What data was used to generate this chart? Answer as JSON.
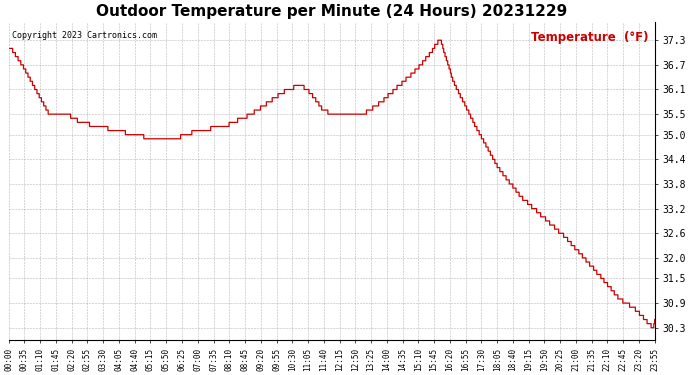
{
  "title": "Outdoor Temperature per Minute (24 Hours) 20231229",
  "copyright_text": "Copyright 2023 Cartronics.com",
  "legend_text": "Temperature  (°F)",
  "line_color": "#cc0000",
  "legend_color": "#cc0000",
  "copyright_color": "#000000",
  "background_color": "#ffffff",
  "grid_color": "#888888",
  "title_fontsize": 11,
  "tick_fontsize": 5.5,
  "ylabel_right_fontsize": 7,
  "ylim": [
    30.0,
    37.75
  ],
  "yticks": [
    30.3,
    30.9,
    31.5,
    32.0,
    32.6,
    33.2,
    33.8,
    34.4,
    35.0,
    35.5,
    36.1,
    36.7,
    37.3
  ],
  "x_tick_labels": [
    "00:00",
    "00:35",
    "01:10",
    "01:45",
    "02:20",
    "02:55",
    "03:30",
    "04:05",
    "04:40",
    "05:15",
    "05:50",
    "06:25",
    "07:00",
    "07:35",
    "08:10",
    "08:45",
    "09:20",
    "09:55",
    "10:30",
    "11:05",
    "11:40",
    "12:15",
    "12:50",
    "13:25",
    "14:00",
    "14:35",
    "15:10",
    "15:45",
    "16:20",
    "16:55",
    "17:30",
    "18:05",
    "18:40",
    "19:15",
    "19:50",
    "20:25",
    "21:00",
    "21:35",
    "22:10",
    "22:45",
    "23:20",
    "23:55"
  ],
  "segment_descriptions": [
    {
      "from_minute": 0,
      "to_minute": 5,
      "from_temp": 37.1,
      "to_temp": 37.1
    },
    {
      "from_minute": 5,
      "to_minute": 30,
      "from_temp": 37.1,
      "to_temp": 36.7
    },
    {
      "from_minute": 30,
      "to_minute": 60,
      "from_temp": 36.7,
      "to_temp": 36.1
    },
    {
      "from_minute": 60,
      "to_minute": 90,
      "from_temp": 36.1,
      "to_temp": 35.5
    },
    {
      "from_minute": 90,
      "to_minute": 130,
      "from_temp": 35.5,
      "to_temp": 35.5
    },
    {
      "from_minute": 130,
      "to_minute": 160,
      "from_temp": 35.5,
      "to_temp": 35.3
    },
    {
      "from_minute": 160,
      "to_minute": 200,
      "from_temp": 35.3,
      "to_temp": 35.2
    },
    {
      "from_minute": 200,
      "to_minute": 240,
      "from_temp": 35.2,
      "to_temp": 35.1
    },
    {
      "from_minute": 240,
      "to_minute": 280,
      "from_temp": 35.1,
      "to_temp": 35.0
    },
    {
      "from_minute": 280,
      "to_minute": 320,
      "from_temp": 35.0,
      "to_temp": 34.9
    },
    {
      "from_minute": 320,
      "to_minute": 370,
      "from_temp": 34.9,
      "to_temp": 34.9
    },
    {
      "from_minute": 370,
      "to_minute": 420,
      "from_temp": 34.9,
      "to_temp": 35.1
    },
    {
      "from_minute": 420,
      "to_minute": 480,
      "from_temp": 35.1,
      "to_temp": 35.2
    },
    {
      "from_minute": 480,
      "to_minute": 540,
      "from_temp": 35.2,
      "to_temp": 35.5
    },
    {
      "from_minute": 540,
      "to_minute": 580,
      "from_temp": 35.5,
      "to_temp": 35.8
    },
    {
      "from_minute": 580,
      "to_minute": 620,
      "from_temp": 35.8,
      "to_temp": 36.1
    },
    {
      "from_minute": 620,
      "to_minute": 650,
      "from_temp": 36.1,
      "to_temp": 36.2
    },
    {
      "from_minute": 650,
      "to_minute": 665,
      "from_temp": 36.2,
      "to_temp": 36.1
    },
    {
      "from_minute": 665,
      "to_minute": 680,
      "from_temp": 36.1,
      "to_temp": 35.9
    },
    {
      "from_minute": 680,
      "to_minute": 700,
      "from_temp": 35.9,
      "to_temp": 35.6
    },
    {
      "from_minute": 700,
      "to_minute": 720,
      "from_temp": 35.6,
      "to_temp": 35.5
    },
    {
      "from_minute": 720,
      "to_minute": 760,
      "from_temp": 35.5,
      "to_temp": 35.5
    },
    {
      "from_minute": 760,
      "to_minute": 790,
      "from_temp": 35.5,
      "to_temp": 35.5
    },
    {
      "from_minute": 790,
      "to_minute": 830,
      "from_temp": 35.5,
      "to_temp": 35.8
    },
    {
      "from_minute": 830,
      "to_minute": 870,
      "from_temp": 35.8,
      "to_temp": 36.2
    },
    {
      "from_minute": 870,
      "to_minute": 910,
      "from_temp": 36.2,
      "to_temp": 36.6
    },
    {
      "from_minute": 910,
      "to_minute": 940,
      "from_temp": 36.6,
      "to_temp": 37.0
    },
    {
      "from_minute": 940,
      "to_minute": 958,
      "from_temp": 37.0,
      "to_temp": 37.3
    },
    {
      "from_minute": 958,
      "to_minute": 962,
      "from_temp": 37.3,
      "to_temp": 37.3
    },
    {
      "from_minute": 962,
      "to_minute": 990,
      "from_temp": 37.3,
      "to_temp": 36.3
    },
    {
      "from_minute": 990,
      "to_minute": 1040,
      "from_temp": 36.3,
      "to_temp": 35.2
    },
    {
      "from_minute": 1040,
      "to_minute": 1090,
      "from_temp": 35.2,
      "to_temp": 34.2
    },
    {
      "from_minute": 1090,
      "to_minute": 1140,
      "from_temp": 34.2,
      "to_temp": 33.5
    },
    {
      "from_minute": 1140,
      "to_minute": 1190,
      "from_temp": 33.5,
      "to_temp": 33.0
    },
    {
      "from_minute": 1190,
      "to_minute": 1240,
      "from_temp": 33.0,
      "to_temp": 32.5
    },
    {
      "from_minute": 1240,
      "to_minute": 1290,
      "from_temp": 32.5,
      "to_temp": 31.9
    },
    {
      "from_minute": 1290,
      "to_minute": 1330,
      "from_temp": 31.9,
      "to_temp": 31.4
    },
    {
      "from_minute": 1330,
      "to_minute": 1360,
      "from_temp": 31.4,
      "to_temp": 31.0
    },
    {
      "from_minute": 1360,
      "to_minute": 1390,
      "from_temp": 31.0,
      "to_temp": 30.8
    },
    {
      "from_minute": 1390,
      "to_minute": 1410,
      "from_temp": 30.8,
      "to_temp": 30.6
    },
    {
      "from_minute": 1410,
      "to_minute": 1425,
      "from_temp": 30.6,
      "to_temp": 30.4
    },
    {
      "from_minute": 1425,
      "to_minute": 1435,
      "from_temp": 30.4,
      "to_temp": 30.3
    },
    {
      "from_minute": 1435,
      "to_minute": 1440,
      "from_temp": 30.3,
      "to_temp": 30.5
    }
  ]
}
